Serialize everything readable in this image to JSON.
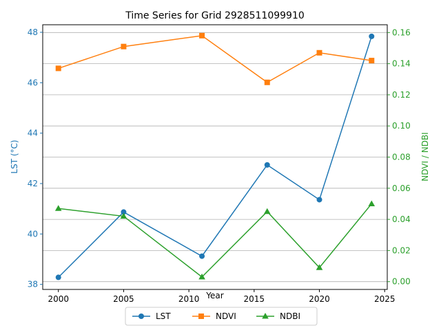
{
  "chart_data": {
    "type": "line",
    "title": "Time Series for Grid 2928511099910",
    "xlabel": "Year",
    "ylabel_left": "LST (°C)",
    "ylabel_right": "NDVI / NDBI",
    "x": [
      2000,
      2005,
      2011,
      2016,
      2020,
      2024
    ],
    "xlim": [
      1998.8,
      2025.2
    ],
    "ylim_left": [
      37.8,
      48.3
    ],
    "ylim_right": [
      -0.005,
      0.165
    ],
    "xticks": [
      2000,
      2005,
      2010,
      2015,
      2020,
      2025
    ],
    "yticks_left": [
      38,
      40,
      42,
      44,
      46,
      48
    ],
    "yticks_right": [
      "0.00",
      "0.02",
      "0.04",
      "0.06",
      "0.08",
      "0.10",
      "0.12",
      "0.14",
      "0.16"
    ],
    "grid": "horizontal lines at right-axis ticks",
    "legend": "bottom-center, horizontal",
    "series": [
      {
        "name": "LST",
        "axis": "left",
        "marker": "circle",
        "color": "#1f77b4",
        "values": [
          38.28,
          40.87,
          39.12,
          42.74,
          41.36,
          47.84
        ]
      },
      {
        "name": "NDVI",
        "axis": "right",
        "marker": "square",
        "color": "#ff7f0e",
        "values": [
          0.137,
          0.151,
          0.158,
          0.128,
          0.147,
          0.142
        ]
      },
      {
        "name": "NDBI",
        "axis": "right",
        "marker": "triangle",
        "color": "#2ca02c",
        "values": [
          0.047,
          0.042,
          0.003,
          0.045,
          0.009,
          0.05
        ]
      }
    ],
    "colors": {
      "left_axis": "#1f77b4",
      "right_axis": "#2ca02c"
    }
  }
}
